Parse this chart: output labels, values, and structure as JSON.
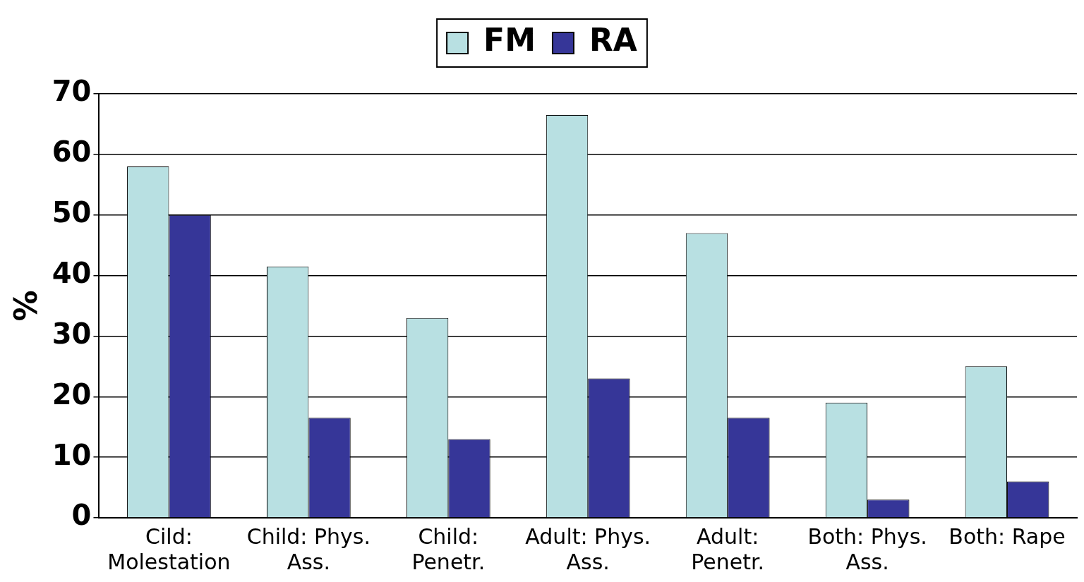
{
  "chart_data": {
    "type": "bar",
    "ylabel": "%",
    "categories": [
      "Cild: Molestation",
      "Child: Phys. Ass.",
      "Child: Penetr.",
      "Adult: Phys. Ass.",
      "Adult: Penetr.",
      "Both: Phys. Ass.",
      "Both: Rape"
    ],
    "series": [
      {
        "name": "FM",
        "color": "#b8e0e2",
        "values": [
          58,
          41.5,
          33,
          66.5,
          47,
          19,
          25
        ]
      },
      {
        "name": "RA",
        "color": "#363698",
        "values": [
          50,
          16.5,
          13,
          23,
          16.5,
          3,
          6
        ]
      }
    ],
    "ylim": [
      0,
      70
    ],
    "yticks": [
      0,
      10,
      20,
      30,
      40,
      50,
      60,
      70
    ],
    "grid": "y",
    "legend": "top"
  }
}
